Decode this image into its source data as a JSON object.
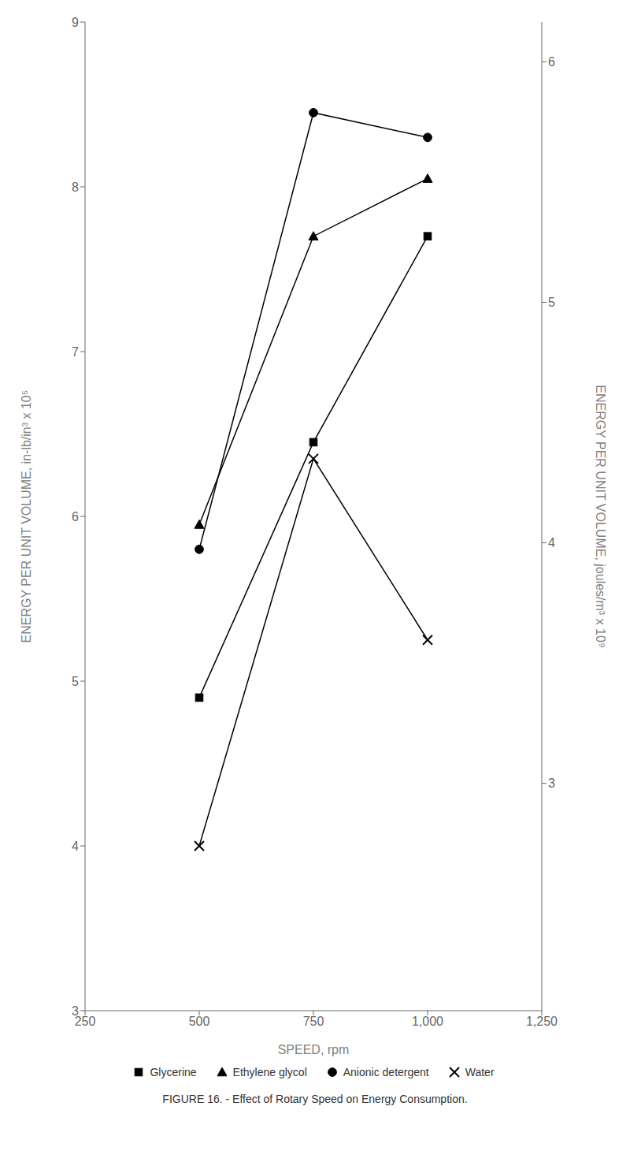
{
  "chart_data": {
    "type": "line",
    "caption": "FIGURE 16. - Effect of Rotary Speed on Energy Consumption.",
    "xlabel": "SPEED, rpm",
    "ylabel": "ENERGY PER UNIT VOLUME, in-lb/in³ x 10⁵",
    "y2label": "ENERGY PER UNIT VOLUME, joules/m³ x 10⁹",
    "x": [
      500,
      750,
      1000
    ],
    "series": [
      {
        "name": "Glycerine",
        "color": "#000000",
        "marker": "square",
        "values": [
          4.9,
          6.45,
          7.7
        ]
      },
      {
        "name": "Ethylene glycol",
        "color": "#000000",
        "marker": "triangle",
        "values": [
          5.95,
          7.7,
          8.05
        ]
      },
      {
        "name": "Anionic detergent",
        "color": "#000000",
        "marker": "circle",
        "values": [
          5.8,
          8.45,
          8.3
        ]
      },
      {
        "name": "Water",
        "color": "#000000",
        "marker": "x",
        "values": [
          4.0,
          6.35,
          5.25
        ]
      }
    ],
    "xlim": [
      250,
      1250
    ],
    "xticks": [
      250,
      500,
      750,
      {
        "value": 1000,
        "label": "1,000"
      },
      {
        "value": 1250,
        "label": "1,250"
      }
    ],
    "ylim": [
      3,
      9
    ],
    "yticks": [
      3,
      4,
      5,
      6,
      7,
      8,
      9
    ],
    "y2lim": [
      2.055,
      6.165
    ],
    "y2ticks": [
      3,
      4,
      5,
      6
    ],
    "grid": false,
    "legend": "bottom"
  }
}
